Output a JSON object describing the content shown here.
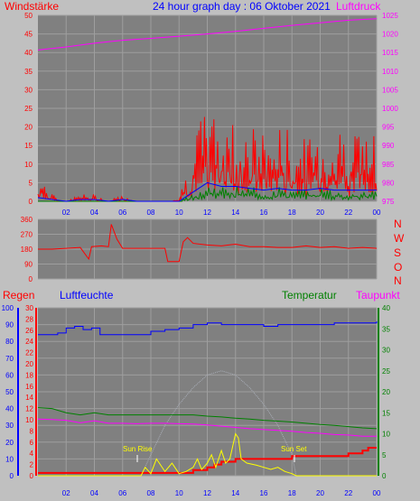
{
  "colors": {
    "background": "#c0c0c0",
    "plot_background": "#808080",
    "grid": "#9e9e9e",
    "wind": "#ff0000",
    "gust": "#0000ff",
    "green": "#008000",
    "pressure": "#ff00ff",
    "direction": "#ff0000",
    "rain": "#ff0000",
    "humidity": "#0000ff",
    "temperature": "#008000",
    "dewpoint": "#ff00ff",
    "sun": "#ffff00",
    "sun_faint": "#a9aeb8",
    "title": "#0000ff"
  },
  "chart_data": [
    {
      "type": "line",
      "title": "24 hour graph day : 06 Oktober 2021",
      "ylabel_left": "Windstärke",
      "ylabel_right": "Luftdruck",
      "x_ticks": [
        "02",
        "04",
        "06",
        "08",
        "10",
        "12",
        "14",
        "16",
        "18",
        "20",
        "22",
        "00"
      ],
      "y_left_ticks": [
        "50",
        "45",
        "40",
        "35",
        "30",
        "25",
        "20",
        "15",
        "10",
        "5",
        "0"
      ],
      "y_right_ticks": [
        "1025",
        "1020",
        "1015",
        "1010",
        "1005",
        "1000",
        "995",
        "990",
        "985",
        "980",
        "975"
      ],
      "ylim_left": [
        0,
        50
      ],
      "ylim_right": [
        975,
        1025
      ],
      "series": [
        {
          "key": "pressure",
          "x": [
            0,
            2,
            4,
            6,
            8,
            10,
            12,
            14,
            16,
            18,
            20,
            22,
            24
          ],
          "values": [
            1015.7,
            1016.5,
            1017.5,
            1018.3,
            1018.8,
            1019.4,
            1020.0,
            1020.7,
            1021.5,
            1022.3,
            1023.0,
            1023.7,
            1024.1
          ]
        },
        {
          "key": "wind",
          "x": [
            0,
            1,
            2,
            3,
            4,
            5,
            6,
            7,
            8,
            9,
            10,
            11,
            12,
            13,
            14,
            15,
            16,
            17,
            18,
            19,
            20,
            21,
            22,
            23,
            24
          ],
          "values": [
            4,
            1,
            0,
            1,
            1,
            0,
            1,
            0,
            0,
            0,
            0.5,
            9,
            14,
            12,
            12,
            11,
            10,
            11,
            10,
            9,
            11,
            10,
            12,
            11,
            9
          ]
        },
        {
          "key": "gust",
          "x": [
            0,
            1,
            2,
            3,
            4,
            5,
            6,
            7,
            8,
            9,
            10,
            11,
            12,
            13,
            14,
            15,
            16,
            17,
            18,
            19,
            20,
            21,
            22,
            23,
            24
          ],
          "values": [
            1,
            0.5,
            0,
            0.5,
            0.5,
            0,
            0.5,
            0,
            0,
            0,
            0,
            2.5,
            5,
            4,
            4,
            3.5,
            3,
            3.5,
            3,
            3,
            3.5,
            3,
            3,
            3,
            3
          ]
        },
        {
          "key": "green",
          "x": [
            0,
            1,
            2,
            3,
            4,
            5,
            6,
            7,
            8,
            9,
            10,
            11,
            12,
            13,
            14,
            15,
            16,
            17,
            18,
            19,
            20,
            21,
            22,
            23,
            24
          ],
          "values": [
            0,
            0,
            0,
            0,
            0,
            0,
            0,
            0,
            0,
            0,
            0,
            1.5,
            3,
            2.5,
            3,
            2.5,
            2,
            2.5,
            2,
            2,
            2.5,
            2,
            2,
            2,
            2
          ]
        }
      ]
    },
    {
      "type": "line",
      "y_ticks": [
        "360",
        "270",
        "180",
        "90",
        "0"
      ],
      "ylim": [
        0,
        360
      ],
      "compass_labels": [
        "N",
        "W",
        "S",
        "O",
        "N"
      ],
      "series": [
        {
          "key": "direction",
          "x": [
            0,
            1,
            2,
            3,
            3.6,
            3.8,
            4.5,
            5.0,
            5.2,
            5.6,
            6,
            7,
            8,
            9,
            9.2,
            10,
            10.3,
            10.6,
            11,
            12,
            13,
            14,
            15,
            16,
            17,
            18,
            19,
            20,
            21,
            22,
            23,
            24
          ],
          "values": [
            180,
            180,
            185,
            190,
            120,
            195,
            200,
            195,
            330,
            240,
            185,
            185,
            185,
            185,
            105,
            105,
            225,
            250,
            215,
            205,
            200,
            210,
            195,
            195,
            190,
            190,
            200,
            190,
            195,
            185,
            190,
            185
          ]
        }
      ]
    },
    {
      "type": "line",
      "labels": {
        "rain": "Regen",
        "humidity": "Luftfeuchte",
        "temperature": "Temperatur",
        "dewpoint": "Taupunkt"
      },
      "annotations": {
        "sunrise": "Sun Rise",
        "sunset": "Sun Set"
      },
      "x_ticks": [
        "02",
        "04",
        "06",
        "08",
        "10",
        "12",
        "14",
        "16",
        "18",
        "20",
        "22",
        "00"
      ],
      "y_humidity_ticks": [
        "100",
        "90",
        "80",
        "70",
        "60",
        "50",
        "40",
        "30",
        "20",
        "10",
        "0"
      ],
      "y_rain_ticks": [
        "30",
        "28",
        "26",
        "24",
        "22",
        "20",
        "18",
        "16",
        "14",
        "12",
        "10",
        "8",
        "6",
        "4",
        "2",
        "0"
      ],
      "y_temp_ticks": [
        "40",
        "35",
        "30",
        "25",
        "20",
        "15",
        "10",
        "5",
        "0"
      ],
      "ylim_humidity": [
        0,
        100
      ],
      "ylim_rain": [
        0,
        30
      ],
      "ylim_temp": [
        0,
        40
      ],
      "series": [
        {
          "key": "humidity",
          "x": [
            0,
            0.6,
            1.4,
            2.0,
            2.6,
            3.2,
            3.8,
            4.4,
            5,
            6,
            6.5,
            7,
            8,
            9,
            10,
            11,
            12,
            13,
            14,
            15,
            16,
            17,
            18,
            19,
            20,
            21,
            22,
            23,
            24
          ],
          "values": [
            84,
            84,
            85,
            88,
            89,
            87,
            88,
            84,
            84,
            84,
            84,
            84,
            86,
            87,
            88,
            90,
            91,
            90,
            90,
            90,
            89,
            90,
            90,
            90,
            90,
            91,
            91,
            91,
            92
          ]
        },
        {
          "key": "temperature",
          "x": [
            0,
            1,
            2,
            3,
            4,
            5,
            6,
            7,
            8,
            9,
            10,
            11,
            12,
            13,
            14,
            15,
            16,
            17,
            18,
            19,
            20,
            21,
            22,
            23,
            24
          ],
          "values": [
            16.2,
            16,
            15,
            14.5,
            15,
            14.5,
            14.5,
            14.5,
            14.5,
            14.5,
            14.5,
            14.5,
            14.2,
            14,
            13.7,
            13.5,
            13.2,
            13,
            12.8,
            12.5,
            12.2,
            12,
            11.7,
            11.4,
            11.2
          ]
        },
        {
          "key": "dewpoint",
          "x": [
            0,
            1,
            2,
            3,
            4,
            5,
            6,
            7,
            8,
            9,
            10,
            11,
            12,
            13,
            14,
            15,
            16,
            17,
            18,
            19,
            20,
            21,
            22,
            23,
            24
          ],
          "values": [
            13.5,
            13.4,
            13.2,
            12.6,
            13.1,
            12.5,
            12.5,
            12.4,
            12.5,
            12.5,
            12.4,
            12.3,
            12.1,
            11.8,
            11.5,
            11.2,
            11.0,
            10.8,
            10.6,
            10.3,
            10.1,
            9.8,
            9.7,
            9.4,
            9.4
          ]
        },
        {
          "key": "rain",
          "x": [
            0,
            10,
            11,
            12,
            12.5,
            13,
            14,
            15,
            17,
            18,
            19,
            20,
            21,
            22,
            23,
            23.4,
            24
          ],
          "values": [
            0.5,
            0.5,
            1,
            1.5,
            2,
            2.5,
            3,
            3,
            3,
            3.5,
            3.5,
            3.5,
            3.5,
            4,
            4.5,
            5,
            5
          ]
        },
        {
          "key": "sun",
          "x": [
            0,
            7.3,
            7.6,
            8,
            8.4,
            9,
            9.5,
            10,
            10.5,
            11,
            11.3,
            11.6,
            12,
            12.3,
            12.6,
            13,
            13.3,
            13.6,
            14,
            14.2,
            14.4,
            14.8,
            15.5,
            16,
            16.5,
            17,
            17.5,
            18,
            18.3,
            24
          ],
          "values": [
            0,
            0,
            2,
            0.5,
            4,
            1,
            3,
            0.5,
            1,
            2,
            4,
            1.5,
            3,
            5,
            2,
            6,
            3,
            4,
            10,
            9,
            4,
            3,
            2.5,
            2,
            1.5,
            2,
            1,
            0.5,
            0,
            0
          ]
        },
        {
          "key": "sun_potential",
          "x": [
            7.3,
            8,
            9,
            10,
            11,
            12,
            13,
            14,
            15,
            16,
            17,
            18,
            18.3
          ],
          "values": [
            0,
            5,
            12,
            17,
            21,
            24,
            25,
            24,
            21,
            17,
            12,
            5,
            0
          ]
        }
      ],
      "sunrise_hour": 7.3,
      "sunset_hour": 18.3
    }
  ]
}
